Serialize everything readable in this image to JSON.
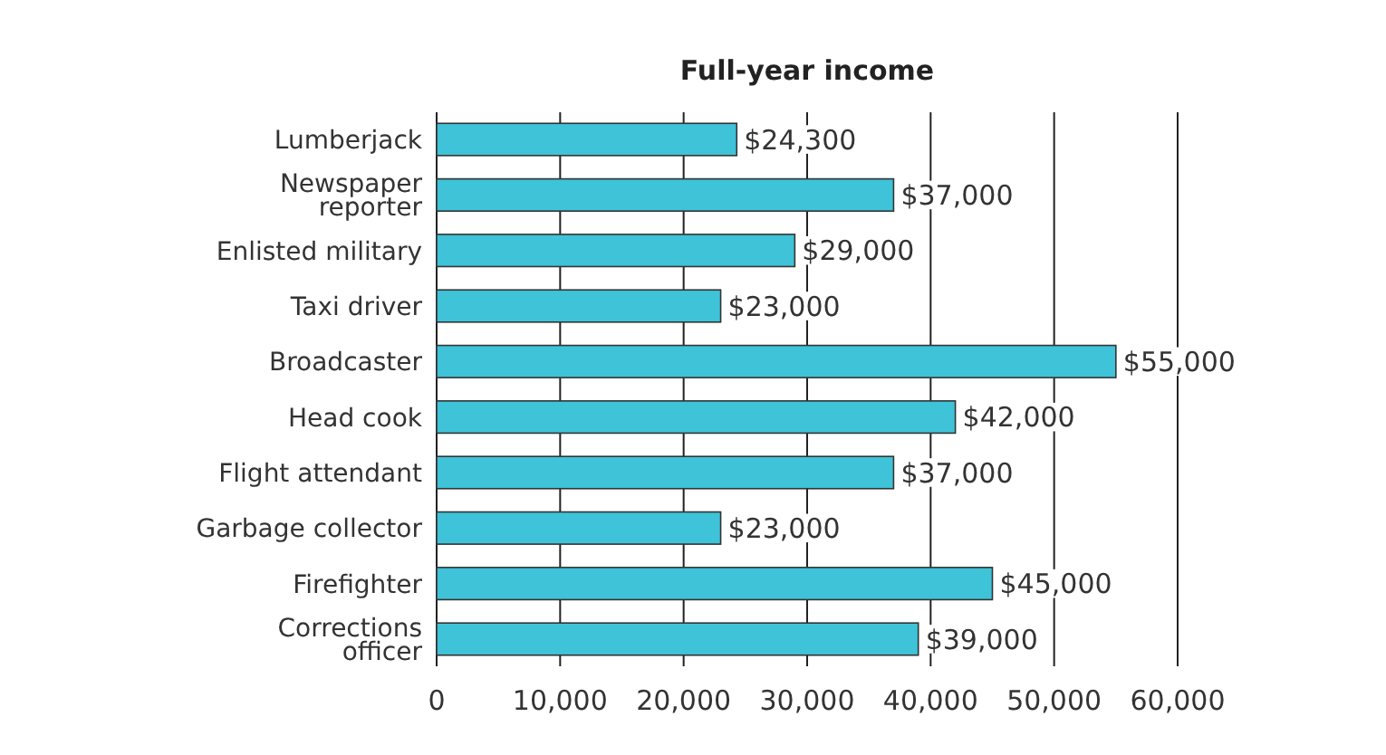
{
  "chart_data": {
    "type": "bar",
    "orientation": "horizontal",
    "title": "Full-year income",
    "categories": [
      "Lumberjack",
      "Newspaper reporter",
      "Enlisted military",
      "Taxi driver",
      "Broadcaster",
      "Head cook",
      "Flight attendant",
      "Garbage collector",
      "Firefighter",
      "Corrections officer"
    ],
    "values": [
      24300,
      37000,
      29000,
      23000,
      55000,
      42000,
      37000,
      23000,
      45000,
      39000
    ],
    "value_labels": [
      "$24,300",
      "$37,000",
      "$29,000",
      "$23,000",
      "$55,000",
      "$42,000",
      "$37,000",
      "$23,000",
      "$45,000",
      "$39,000"
    ],
    "color": "#3ec3d8",
    "xlim": [
      0,
      60000
    ],
    "xticks": [
      0,
      {
        "value": 10000,
        "label": "10,000"
      },
      {
        "value": 20000,
        "label": "20,000"
      },
      {
        "value": 30000,
        "label": "30,000"
      },
      {
        "value": 40000,
        "label": "40,000"
      },
      {
        "value": 50000,
        "label": "50,000"
      },
      {
        "value": 60000,
        "label": "60,000"
      }
    ],
    "grid": "x"
  }
}
